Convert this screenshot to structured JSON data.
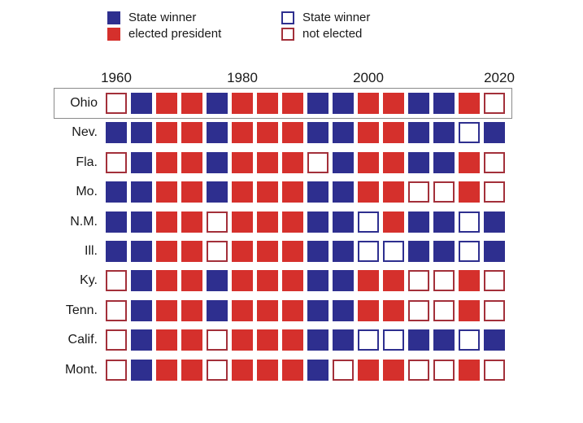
{
  "legend": [
    {
      "line1": "State winner",
      "line2": "elected president",
      "key": "WE"
    },
    {
      "line1": "State winner",
      "line2": "not elected",
      "key": "WN"
    }
  ],
  "colors": {
    "D": "#2e2f8f",
    "R": "#d5302c",
    "blue_outline": "#2e2f8f",
    "red_outline": "#a3303a",
    "highlight_border": "#8a8a8a"
  },
  "chart_data": {
    "type": "heatmap",
    "years": [
      1960,
      1964,
      1968,
      1972,
      1976,
      1980,
      1984,
      1988,
      1992,
      1996,
      2000,
      2004,
      2008,
      2012,
      2016,
      2020
    ],
    "x_tick_labels": [
      "1960",
      "1980",
      "2000",
      "2020"
    ],
    "x_tick_values": [
      1960,
      1980,
      2000,
      2020
    ],
    "winners": [
      "D",
      "D",
      "R",
      "R",
      "D",
      "R",
      "R",
      "R",
      "D",
      "D",
      "R",
      "R",
      "D",
      "D",
      "R",
      "D"
    ],
    "cell_encoding": "R = Republican carried state, D = Democrat carried state; filled = state winner elected president, outlined = state winner not elected",
    "rows": [
      {
        "state": "Ohio",
        "highlighted": true,
        "values": [
          "R",
          "D",
          "R",
          "R",
          "D",
          "R",
          "R",
          "R",
          "D",
          "D",
          "R",
          "R",
          "D",
          "D",
          "R",
          "R"
        ]
      },
      {
        "state": "Nev.",
        "highlighted": false,
        "values": [
          "D",
          "D",
          "R",
          "R",
          "D",
          "R",
          "R",
          "R",
          "D",
          "D",
          "R",
          "R",
          "D",
          "D",
          "D",
          "D"
        ]
      },
      {
        "state": "Fla.",
        "highlighted": false,
        "values": [
          "R",
          "D",
          "R",
          "R",
          "D",
          "R",
          "R",
          "R",
          "R",
          "D",
          "R",
          "R",
          "D",
          "D",
          "R",
          "R"
        ]
      },
      {
        "state": "Mo.",
        "highlighted": false,
        "values": [
          "D",
          "D",
          "R",
          "R",
          "D",
          "R",
          "R",
          "R",
          "D",
          "D",
          "R",
          "R",
          "R",
          "R",
          "R",
          "R"
        ]
      },
      {
        "state": "N.M.",
        "highlighted": false,
        "values": [
          "D",
          "D",
          "R",
          "R",
          "R",
          "R",
          "R",
          "R",
          "D",
          "D",
          "D",
          "R",
          "D",
          "D",
          "D",
          "D"
        ]
      },
      {
        "state": "Ill.",
        "highlighted": false,
        "values": [
          "D",
          "D",
          "R",
          "R",
          "R",
          "R",
          "R",
          "R",
          "D",
          "D",
          "D",
          "D",
          "D",
          "D",
          "D",
          "D"
        ]
      },
      {
        "state": "Ky.",
        "highlighted": false,
        "values": [
          "R",
          "D",
          "R",
          "R",
          "D",
          "R",
          "R",
          "R",
          "D",
          "D",
          "R",
          "R",
          "R",
          "R",
          "R",
          "R"
        ]
      },
      {
        "state": "Tenn.",
        "highlighted": false,
        "values": [
          "R",
          "D",
          "R",
          "R",
          "D",
          "R",
          "R",
          "R",
          "D",
          "D",
          "R",
          "R",
          "R",
          "R",
          "R",
          "R"
        ]
      },
      {
        "state": "Calif.",
        "highlighted": false,
        "values": [
          "R",
          "D",
          "R",
          "R",
          "R",
          "R",
          "R",
          "R",
          "D",
          "D",
          "D",
          "D",
          "D",
          "D",
          "D",
          "D"
        ]
      },
      {
        "state": "Mont.",
        "highlighted": false,
        "values": [
          "R",
          "D",
          "R",
          "R",
          "R",
          "R",
          "R",
          "R",
          "D",
          "R",
          "R",
          "R",
          "R",
          "R",
          "R",
          "R"
        ]
      }
    ]
  }
}
